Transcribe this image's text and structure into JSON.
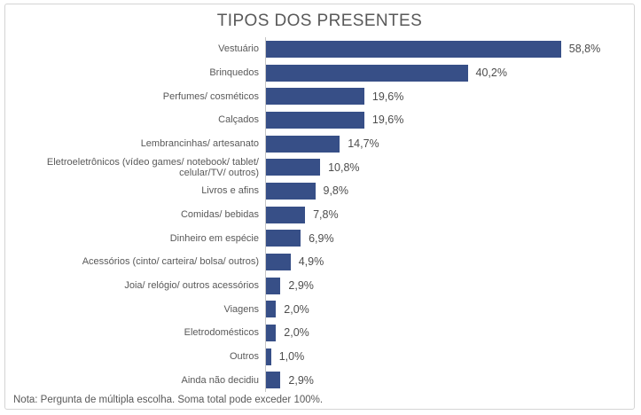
{
  "chart_data": {
    "type": "bar",
    "orientation": "horizontal",
    "title": "TIPOS DOS PRESENTES",
    "categories": [
      "Vestuário",
      "Brinquedos",
      "Perfumes/ cosméticos",
      "Calçados",
      "Lembrancinhas/ artesanato",
      "Eletroeletrônicos (vídeo games/ notebook/ tablet/ celular/TV/ outros)",
      "Livros e afins",
      "Comidas/ bebidas",
      "Dinheiro em espécie",
      "Acessórios (cinto/ carteira/ bolsa/ outros)",
      "Joia/ relógio/ outros acessórios",
      "Viagens",
      "Eletrodomésticos",
      "Outros",
      "Ainda não decidiu"
    ],
    "values": [
      58.8,
      40.2,
      19.6,
      19.6,
      14.7,
      10.8,
      9.8,
      7.8,
      6.9,
      4.9,
      2.9,
      2.0,
      2.0,
      1.0,
      2.9
    ],
    "value_labels": [
      "58,8%",
      "40,2%",
      "19,6%",
      "19,6%",
      "14,7%",
      "10,8%",
      "9,8%",
      "7,8%",
      "6,9%",
      "4,9%",
      "2,9%",
      "2,0%",
      "2,0%",
      "1,0%",
      "2,9%"
    ],
    "value_suffix": "%",
    "decimal_separator": ",",
    "xlabel": "",
    "ylabel": "",
    "xlim": [
      0,
      70
    ],
    "grid": false,
    "legend": false,
    "data_labels": "outside-end",
    "bar_color": "#374f87",
    "title_color": "#595959",
    "label_color": "#595959",
    "value_label_color": "#4d4d4d",
    "axis_line_color": "#c6c6c6",
    "frame_border_color": "#d4d4d4"
  },
  "note": "Nota: Pergunta de múltipla escolha. Soma total pode exceder 100%."
}
